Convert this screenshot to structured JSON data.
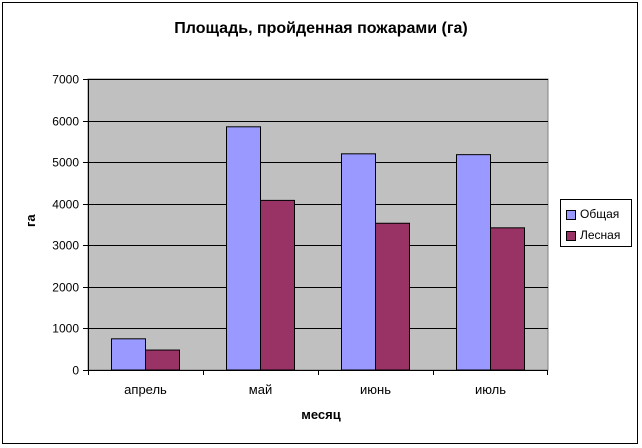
{
  "chart_data": {
    "type": "bar",
    "title": "Площадь, пройденная пожарами (га)",
    "xlabel": "месяц",
    "ylabel": "га",
    "categories": [
      "апрель",
      "май",
      "июнь",
      "июль"
    ],
    "series": [
      {
        "name": "Общая",
        "values": [
          750,
          5850,
          5200,
          5180
        ],
        "color": "#9999ff"
      },
      {
        "name": "Лесная",
        "values": [
          480,
          4080,
          3530,
          3420
        ],
        "color": "#993366"
      }
    ],
    "ylim": [
      0,
      7000
    ],
    "yticks": [
      "0",
      "1000",
      "2000",
      "3000",
      "4000",
      "5000",
      "6000",
      "7000"
    ],
    "grid": true,
    "plot_background": "#c0c0c0",
    "legend_position": "right"
  }
}
